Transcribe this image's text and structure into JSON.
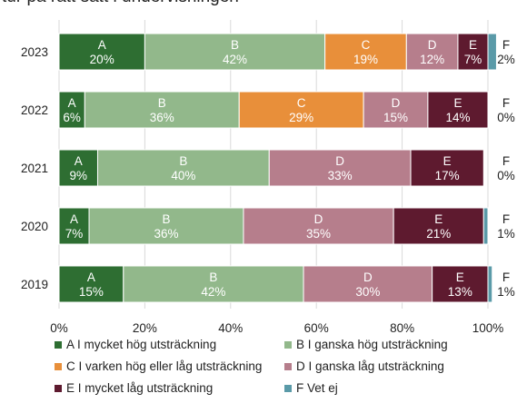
{
  "title_fragment": "tur på rätt sätt i undervisningen",
  "chart_data": {
    "type": "bar",
    "orientation": "horizontal",
    "stacked": true,
    "categories": [
      "2023",
      "2022",
      "2021",
      "2020",
      "2019"
    ],
    "series": [
      {
        "code": "A",
        "name": "A I mycket hög utsträckning",
        "color": "#2e6e32",
        "values": [
          20,
          6,
          9,
          7,
          15
        ],
        "labels": [
          "20%",
          "6%",
          "9%",
          "7%",
          "15%"
        ]
      },
      {
        "code": "B",
        "name": "B I ganska hög utsträckning",
        "color": "#92b88b",
        "values": [
          42,
          36,
          40,
          36,
          42
        ],
        "labels": [
          "42%",
          "36%",
          "40%",
          "36%",
          "42%"
        ]
      },
      {
        "code": "C",
        "name": "C I varken hög eller låg utsträckning",
        "color": "#e88f3a",
        "values": [
          19,
          29,
          0,
          0,
          0
        ],
        "labels": [
          "19%",
          "29%",
          "",
          "",
          ""
        ]
      },
      {
        "code": "D",
        "name": "D I ganska låg utsträckning",
        "color": "#b67e8c",
        "values": [
          12,
          15,
          33,
          35,
          30
        ],
        "labels": [
          "12%",
          "15%",
          "33%",
          "35%",
          "30%"
        ]
      },
      {
        "code": "E",
        "name": "E I mycket låg utsträckning",
        "color": "#5e1a2f",
        "values": [
          7,
          14,
          17,
          21,
          13
        ],
        "labels": [
          "7%",
          "14%",
          "17%",
          "21%",
          "13%"
        ]
      },
      {
        "code": "F",
        "name": "F Vet ej",
        "color": "#5a9aa8",
        "values": [
          2,
          0,
          0,
          1,
          1
        ],
        "labels": [
          "2%",
          "0%",
          "0%",
          "1%",
          "1%"
        ]
      }
    ],
    "x_ticks": [
      "0%",
      "20%",
      "40%",
      "60%",
      "80%",
      "100%"
    ],
    "xlim": [
      0,
      100
    ],
    "grid": true,
    "legend": "bottom"
  }
}
